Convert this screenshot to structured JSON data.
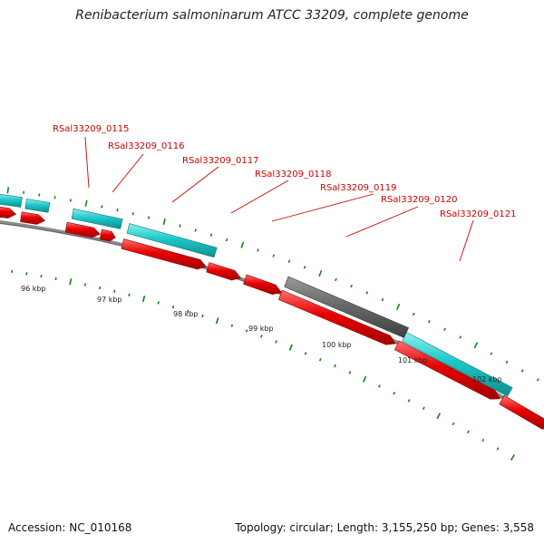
{
  "title": "Renibacterium salmoninarum ATCC 33209, complete genome",
  "accession": "Accession: NC_010168",
  "topology": "Topology: circular; Length: 3,155,250 bp; Genes: 3,558",
  "colors": {
    "forward_cds": "#e60000",
    "reverse_cds": "#1ec8c8",
    "other_feature": "#6e6e6e",
    "backbone": "#8a8a8a",
    "ticks": "#138013",
    "labels": "#cc0000"
  },
  "gene_labels": [
    "RSal33209_0115",
    "RSal33209_0116",
    "RSal33209_0117",
    "RSal33209_0118",
    "RSal33209_0119",
    "RSal33209_0120",
    "RSal33209_0121"
  ],
  "kbp_labels": [
    "96 kbp",
    "97 kbp",
    "98 kbp",
    "99 kbp",
    "100 kbp",
    "101 kbp",
    "102 kbp"
  ]
}
